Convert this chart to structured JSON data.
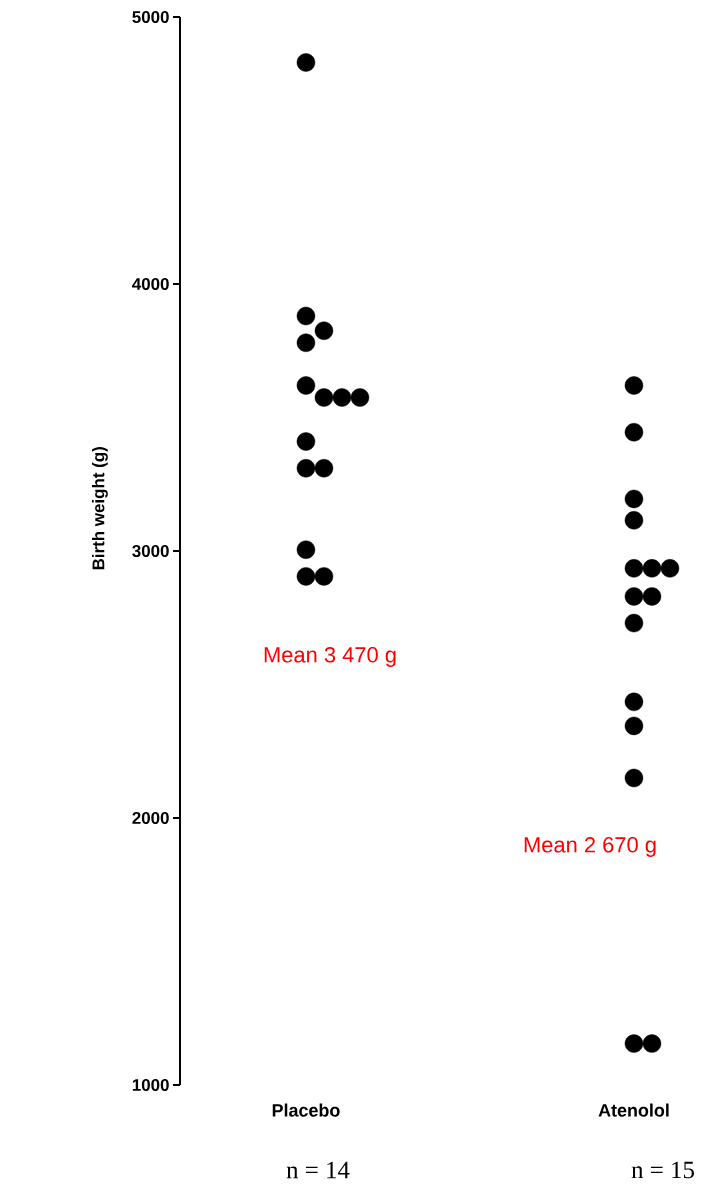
{
  "chart_data": {
    "type": "scatter",
    "ylabel": "Birth weight (g)",
    "categories": [
      "Placebo",
      "Atenolol"
    ],
    "series": [
      {
        "color": "#000000",
        "x": [
          "Placebo",
          "Placebo",
          "Placebo",
          "Placebo",
          "Placebo",
          "Placebo",
          "Placebo",
          "Placebo",
          "Placebo",
          "Placebo",
          "Placebo",
          "Placebo",
          "Placebo",
          "Placebo",
          "Atenolol",
          "Atenolol",
          "Atenolol",
          "Atenolol",
          "Atenolol",
          "Atenolol",
          "Atenolol",
          "Atenolol",
          "Atenolol",
          "Atenolol",
          "Atenolol",
          "Atenolol",
          "Atenolol",
          "Atenolol",
          "Atenolol"
        ],
        "values": [
          4830,
          3880,
          3825,
          3780,
          3620,
          3575,
          3575,
          3575,
          3410,
          3310,
          3310,
          3005,
          2905,
          2905,
          3620,
          3445,
          3195,
          3115,
          2935,
          2935,
          2935,
          2830,
          2830,
          2730,
          2435,
          2345,
          2150,
          1155,
          1155
        ]
      }
    ],
    "ylim": [
      1000,
      5000
    ],
    "yticks": [
      1000,
      2000,
      3000,
      4000,
      5000
    ],
    "marker": "circle",
    "annotations": [
      "Mean 3 470 g",
      "Mean 2 670 g",
      "n = 14",
      "n = 15"
    ]
  }
}
